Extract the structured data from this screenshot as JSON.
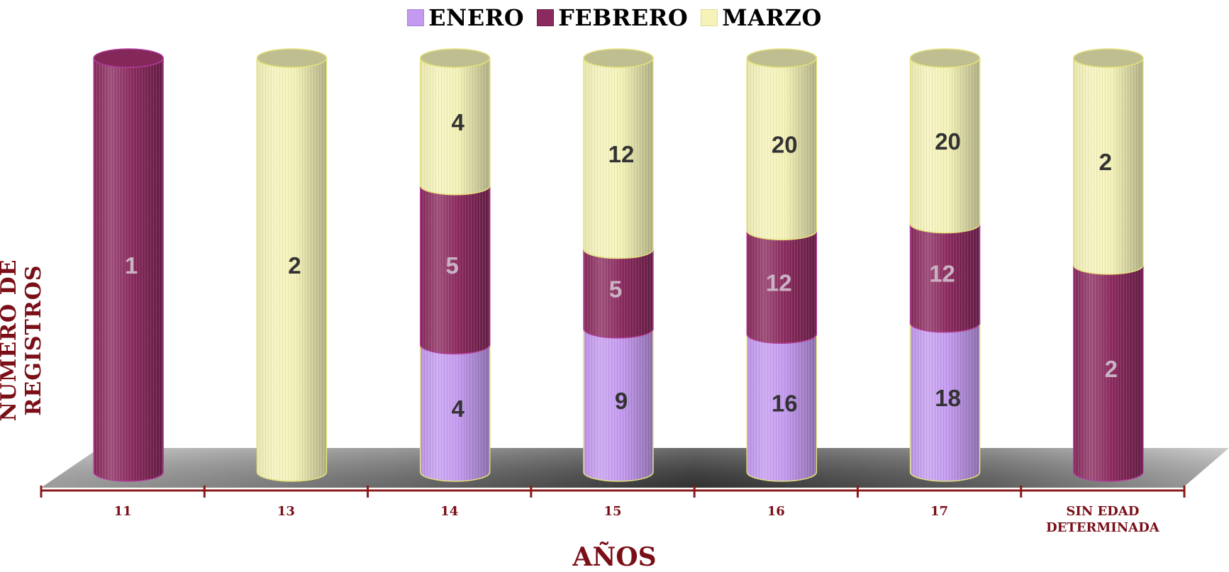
{
  "chart_data": {
    "type": "bar",
    "stacked": true,
    "style": "3d-cylinder",
    "categories": [
      "11",
      "13",
      "14",
      "15",
      "16",
      "17",
      "SIN EDAD DETERMINADA"
    ],
    "category_lines": [
      [
        "11"
      ],
      [
        "13"
      ],
      [
        "14"
      ],
      [
        "15"
      ],
      [
        "16"
      ],
      [
        "17"
      ],
      [
        "SIN EDAD",
        "DETERMINADA"
      ]
    ],
    "series": [
      {
        "name": "ENERO",
        "color": "#c49af0",
        "values": [
          null,
          null,
          4,
          9,
          16,
          18,
          null
        ]
      },
      {
        "name": "FEBRERO",
        "color": "#8b2a5e",
        "values": [
          1,
          null,
          5,
          5,
          12,
          12,
          2
        ]
      },
      {
        "name": "MARZO",
        "color": "#f5f3b8",
        "values": [
          null,
          2,
          4,
          12,
          20,
          20,
          2
        ]
      }
    ],
    "xlabel": "AÑOS",
    "ylabel": "NUMERO DE REGISTROS",
    "legend_position": "top-center",
    "grid": false
  }
}
